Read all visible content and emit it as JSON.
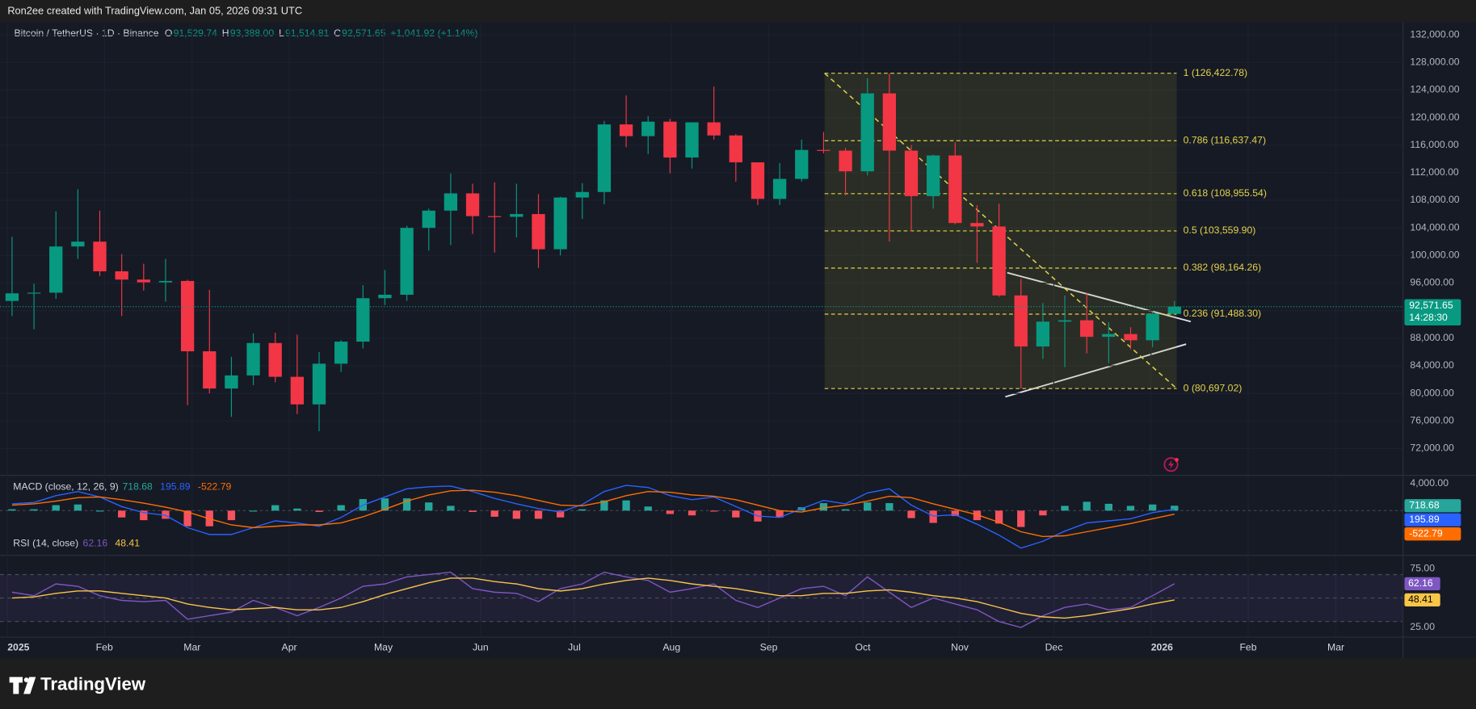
{
  "header": {
    "caption": "Ron2ee created with TradingView.com, Jan 05, 2026 09:31 UTC",
    "brand": "TradingView"
  },
  "chart_data": {
    "type": "candlestick",
    "title": "Bitcoin / TetherUS · 1D · Binance",
    "ohlc_legend": [
      {
        "key": "O",
        "value": "91,529.74"
      },
      {
        "key": "H",
        "value": "93,388.00"
      },
      {
        "key": "L",
        "value": "91,514.81"
      },
      {
        "key": "C",
        "value": "92,571.65"
      }
    ],
    "change": "+1,041.92 (+1.14%)",
    "up_color": "#089981",
    "down_color": "#f23645",
    "xlim": [
      -0.05,
      63.9
    ],
    "xticks": [
      {
        "value": 0.29,
        "label": "2025"
      },
      {
        "value": 4.71,
        "label": "Feb"
      },
      {
        "value": 8.71,
        "label": "Mar"
      },
      {
        "value": 13.14,
        "label": "Apr"
      },
      {
        "value": 17.43,
        "label": "May"
      },
      {
        "value": 21.86,
        "label": "Jun"
      },
      {
        "value": 26.14,
        "label": "Jul"
      },
      {
        "value": 30.57,
        "label": "Aug"
      },
      {
        "value": 35,
        "label": "Sep"
      },
      {
        "value": 39.29,
        "label": "Oct"
      },
      {
        "value": 43.71,
        "label": "Nov"
      },
      {
        "value": 48,
        "label": "Dec"
      },
      {
        "value": 52.43,
        "label": "2026"
      },
      {
        "value": 56.86,
        "label": "Feb"
      },
      {
        "value": 60.86,
        "label": "Mar"
      }
    ],
    "ylim": [
      68180,
      133770
    ],
    "yticks": [
      {
        "value": 132000,
        "label": "132,000.00"
      },
      {
        "value": 128000,
        "label": "128,000.00"
      },
      {
        "value": 124000,
        "label": "124,000.00"
      },
      {
        "value": 120000,
        "label": "120,000.00"
      },
      {
        "value": 116000,
        "label": "116,000.00"
      },
      {
        "value": 112000,
        "label": "112,000.00"
      },
      {
        "value": 108000,
        "label": "108,000.00"
      },
      {
        "value": 104000,
        "label": "104,000.00"
      },
      {
        "value": 100000,
        "label": "100,000.00"
      },
      {
        "value": 96000,
        "label": "96,000.00"
      },
      {
        "value": 92000,
        "label": "92,000.00"
      },
      {
        "value": 88000,
        "label": "88,000.00"
      },
      {
        "value": 84000,
        "label": "84,000.00"
      },
      {
        "value": 80000,
        "label": "80,000.00"
      },
      {
        "value": 76000,
        "label": "76,000.00"
      },
      {
        "value": 72000,
        "label": "72,000.00"
      }
    ],
    "grid": true,
    "open": [
      93400,
      94500,
      94600,
      101300,
      102000,
      97700,
      96500,
      96100,
      96300,
      86100,
      80700,
      82600,
      87300,
      82400,
      78400,
      84300,
      87500,
      93800,
      94300,
      104000,
      106500,
      109000,
      105700,
      105600,
      106000,
      100900,
      108400,
      109200,
      119000,
      117300,
      119400,
      114200,
      119300,
      117400,
      113500,
      108200,
      111100,
      115300,
      115200,
      112200,
      123500,
      115200,
      108600,
      114500,
      104700,
      104200,
      94200,
      86800,
      90400,
      90600,
      88200,
      88600,
      87700,
      91529.74
    ],
    "high": [
      102700,
      95900,
      106400,
      109600,
      106500,
      100200,
      98800,
      99500,
      96500,
      95000,
      85300,
      88700,
      88800,
      88500,
      86000,
      87700,
      95700,
      97900,
      104300,
      106800,
      111900,
      110400,
      110600,
      110400,
      108900,
      108500,
      110500,
      119500,
      123200,
      120200,
      119800,
      119300,
      124500,
      117600,
      113500,
      113400,
      116800,
      117900,
      115600,
      125700,
      126400,
      116000,
      114600,
      116400,
      107300,
      107500,
      96600,
      93100,
      94200,
      94600,
      90300,
      89600,
      91900,
      93388
    ],
    "low": [
      91200,
      89300,
      93700,
      99500,
      97000,
      91200,
      94900,
      93300,
      78300,
      80000,
      76600,
      81200,
      81600,
      77000,
      74500,
      83100,
      86500,
      92800,
      93400,
      100700,
      101500,
      103100,
      100400,
      102600,
      98200,
      100000,
      105300,
      107400,
      115700,
      114700,
      111900,
      112600,
      116800,
      110700,
      107300,
      107300,
      110700,
      114800,
      108700,
      111600,
      102000,
      103500,
      106800,
      104500,
      98900,
      94000,
      80700,
      85000,
      83800,
      85800,
      84400,
      86400,
      86700,
      91514.81
    ],
    "close": [
      94500,
      94600,
      101300,
      102000,
      97700,
      96500,
      96100,
      96300,
      86100,
      80700,
      82600,
      87300,
      82400,
      78400,
      84300,
      87500,
      93800,
      94300,
      104000,
      106500,
      109000,
      105700,
      105600,
      106000,
      100900,
      108400,
      109200,
      119000,
      117300,
      119400,
      114200,
      119300,
      117400,
      113500,
      108200,
      111100,
      115300,
      115200,
      112200,
      123500,
      115200,
      108600,
      114500,
      104700,
      104200,
      94200,
      86800,
      90400,
      90600,
      88200,
      88600,
      87700,
      91529.74,
      92571.65
    ],
    "last_price": {
      "value": 92571.65,
      "label": "92,571.65"
    },
    "countdown": "14:28:30",
    "fib_levels": [
      {
        "value": 126422.78,
        "label": "1 (126,422.78)"
      },
      {
        "value": 116637.47,
        "label": "0.786 (116,637.47)"
      },
      {
        "value": 108955.54,
        "label": "0.618 (108,955.54)"
      },
      {
        "value": 103559.9,
        "label": "0.5 (103,559.90)"
      },
      {
        "value": 98164.26,
        "label": "0.382 (98,164.26)"
      },
      {
        "value": 91488.3,
        "label": "0.236 (91,488.30)"
      },
      {
        "value": 80697.02,
        "label": "0 (80,697.02)"
      }
    ],
    "fib_color": "#e2d34a",
    "macd": {
      "title": "MACD (close, 12, 26, 9)",
      "ylim": [
        -6480,
        4970
      ],
      "yticks": [
        {
          "value": 4000,
          "label": "4,000.00"
        }
      ],
      "series": [
        {
          "color": "#26a69a",
          "kind": "histogram",
          "values": [
            200,
            200,
            800,
            900,
            0,
            -1000,
            -1400,
            -1200,
            -2300,
            -2300,
            -1400,
            0,
            800,
            300,
            -200,
            800,
            1700,
            1800,
            1800,
            1200,
            700,
            -200,
            -900,
            -1200,
            -1200,
            -1000,
            200,
            1500,
            1500,
            600,
            -500,
            -700,
            -100,
            -1000,
            -1600,
            -1000,
            500,
            1100,
            200,
            1200,
            1100,
            -1100,
            -1800,
            -800,
            -1400,
            -1900,
            -2400,
            -700,
            700,
            1300,
            1000,
            700,
            900,
            718.68
          ]
        },
        {
          "color": "#2962ff",
          "kind": "line",
          "values": [
            1000,
            1200,
            2200,
            2800,
            2000,
            600,
            -300,
            -700,
            -2500,
            -3500,
            -3500,
            -2500,
            -1500,
            -1800,
            -2300,
            -1000,
            800,
            2000,
            3200,
            3500,
            3600,
            2800,
            1800,
            1000,
            300,
            -200,
            900,
            2800,
            3700,
            3400,
            2200,
            1600,
            2000,
            600,
            -800,
            -1000,
            300,
            1500,
            1000,
            2600,
            3200,
            800,
            -800,
            -600,
            -2000,
            -3600,
            -5500,
            -4500,
            -3000,
            -1800,
            -1500,
            -1200,
            -300,
            195.89
          ]
        },
        {
          "color": "#ff6d00",
          "kind": "line",
          "values": [
            800,
            1000,
            1400,
            1900,
            2000,
            1600,
            1100,
            500,
            -200,
            -1200,
            -2100,
            -2500,
            -2300,
            -2100,
            -2100,
            -1800,
            -900,
            200,
            1400,
            2300,
            2900,
            3000,
            2700,
            2200,
            1500,
            800,
            700,
            1300,
            2200,
            2800,
            2700,
            2300,
            2100,
            1600,
            800,
            0,
            -200,
            400,
            800,
            1400,
            2100,
            1900,
            1000,
            200,
            -600,
            -1700,
            -3100,
            -3800,
            -3700,
            -3100,
            -2500,
            -1900,
            -1200,
            -522.79
          ]
        }
      ],
      "negative_color": "#f7525f"
    },
    "rsi": {
      "title": "RSI (14, close)",
      "ylim": [
        17.2,
        85.2
      ],
      "yticks": [
        {
          "value": 75,
          "label": "75.00"
        },
        {
          "value": 25,
          "label": "25.00"
        }
      ],
      "bands": [
        70,
        50,
        30
      ],
      "series": [
        {
          "color": "#7e57c2",
          "values": [
            55,
            52,
            62,
            60,
            52,
            48,
            47,
            48,
            32,
            35,
            38,
            48,
            42,
            35,
            42,
            50,
            60,
            62,
            68,
            70,
            72,
            58,
            55,
            54,
            47,
            58,
            62,
            72,
            68,
            65,
            55,
            58,
            62,
            48,
            42,
            50,
            58,
            60,
            52,
            68,
            55,
            42,
            50,
            45,
            40,
            30,
            25,
            35,
            42,
            45,
            40,
            42,
            52,
            62.16
          ]
        },
        {
          "color": "#f7c548",
          "values": [
            50,
            51,
            54,
            56,
            56,
            54,
            52,
            50,
            45,
            42,
            40,
            41,
            42,
            40,
            40,
            42,
            47,
            53,
            58,
            63,
            67,
            67,
            64,
            62,
            58,
            56,
            58,
            62,
            65,
            67,
            65,
            62,
            60,
            58,
            55,
            52,
            52,
            54,
            54,
            56,
            57,
            55,
            52,
            50,
            47,
            42,
            37,
            34,
            33,
            35,
            38,
            41,
            45,
            48.41
          ]
        }
      ]
    }
  }
}
